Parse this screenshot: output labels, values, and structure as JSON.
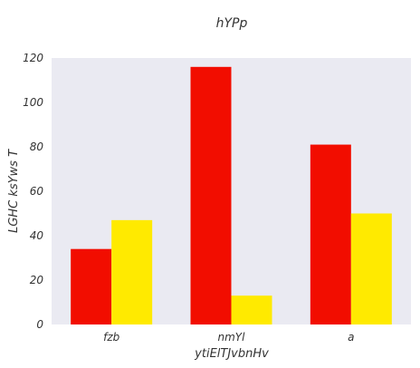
{
  "chart_data": {
    "type": "bar",
    "title": "hYPp",
    "xlabel": "ytiElTJvbnHv",
    "ylabel": "LGHC  ksYws T",
    "categories": [
      "fzb",
      "nmYl",
      "a"
    ],
    "series": [
      {
        "values": [
          34,
          116,
          81
        ],
        "color": "#f20d00"
      },
      {
        "values": [
          47,
          13,
          50
        ],
        "color": "#ffea00"
      }
    ],
    "ylim": [
      0,
      120
    ],
    "yticks": [
      0,
      20,
      40,
      60,
      80,
      100,
      120
    ],
    "grid": false,
    "background_color": "#eaeaf2"
  }
}
